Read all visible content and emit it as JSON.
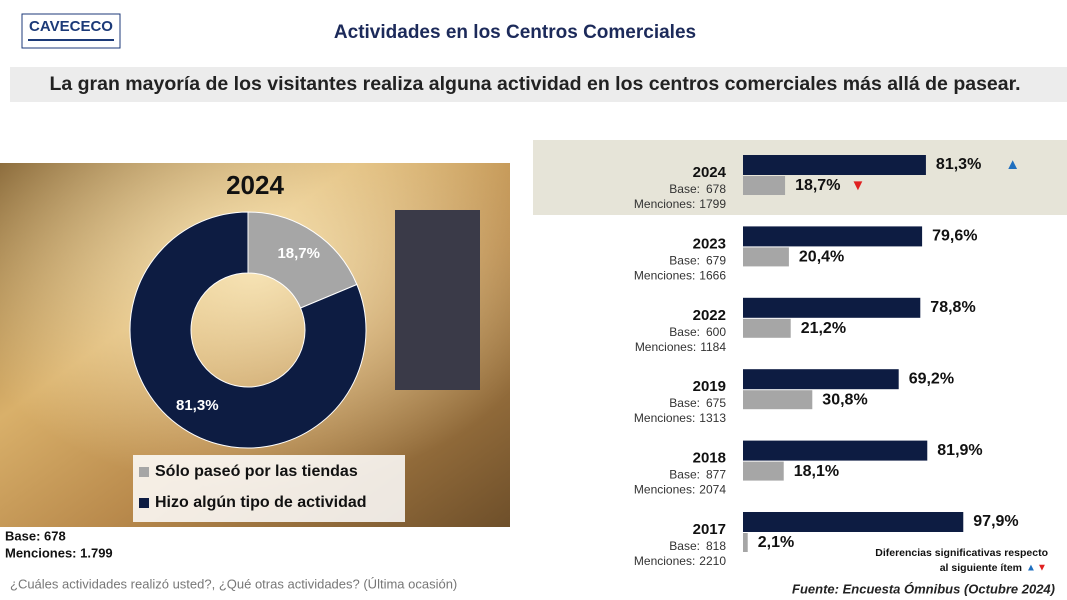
{
  "header": {
    "logo": "CAVECECO",
    "title": "Actividades en los Centros Comerciales",
    "subtitle": "La gran mayoría de los visitantes realiza alguna actividad en los centros comerciales más allá de pasear."
  },
  "chart_data": [
    {
      "type": "donut",
      "title": "2024",
      "categories": [
        "Sólo paseó por las tiendas",
        "Hizo algún tipo de actividad"
      ],
      "values": [
        18.7,
        81.3
      ],
      "value_labels": [
        "18,7%",
        "81,3%"
      ],
      "colors": [
        "#a6a6a6",
        "#0d1c42"
      ],
      "notes": [
        "Base: 678",
        "Menciones: 1.799"
      ]
    },
    {
      "type": "bar",
      "orientation": "horizontal",
      "categories": [
        "2024",
        "2023",
        "2022",
        "2019",
        "2018",
        "2017"
      ],
      "base_label": "Base:",
      "bases": [
        678,
        679,
        600,
        675,
        877,
        818
      ],
      "mentions_label": "Menciones:",
      "mentions": [
        1799,
        1666,
        1184,
        1313,
        2074,
        2210
      ],
      "highlight": "2024",
      "series": [
        {
          "color": "#0d1c42",
          "values": [
            81.3,
            79.6,
            78.8,
            69.2,
            81.9,
            97.9
          ],
          "value_labels": [
            "81,3%",
            "79,6%",
            "78,8%",
            "69,2%",
            "81,9%",
            "97,9%"
          ],
          "markers": [
            "▲",
            null,
            null,
            null,
            null,
            null
          ],
          "marker_color": "#1f6fbf"
        },
        {
          "color": "#a6a6a6",
          "values": [
            18.7,
            20.4,
            21.2,
            30.8,
            18.1,
            2.1
          ],
          "value_labels": [
            "18,7%",
            "20,4%",
            "21,2%",
            "30,8%",
            "18,1%",
            "2,1%"
          ],
          "markers": [
            "▼",
            null,
            null,
            null,
            null,
            null
          ],
          "marker_color": "#e02020"
        }
      ],
      "note": [
        "Diferencias significativas respecto",
        "al siguiente ítem"
      ]
    }
  ],
  "footer": {
    "question": "¿Cuáles actividades realizó usted?, ¿Qué otras actividades? (Última ocasión)",
    "source": "Fuente: Encuesta Ómnibus (Octubre 2024)"
  }
}
